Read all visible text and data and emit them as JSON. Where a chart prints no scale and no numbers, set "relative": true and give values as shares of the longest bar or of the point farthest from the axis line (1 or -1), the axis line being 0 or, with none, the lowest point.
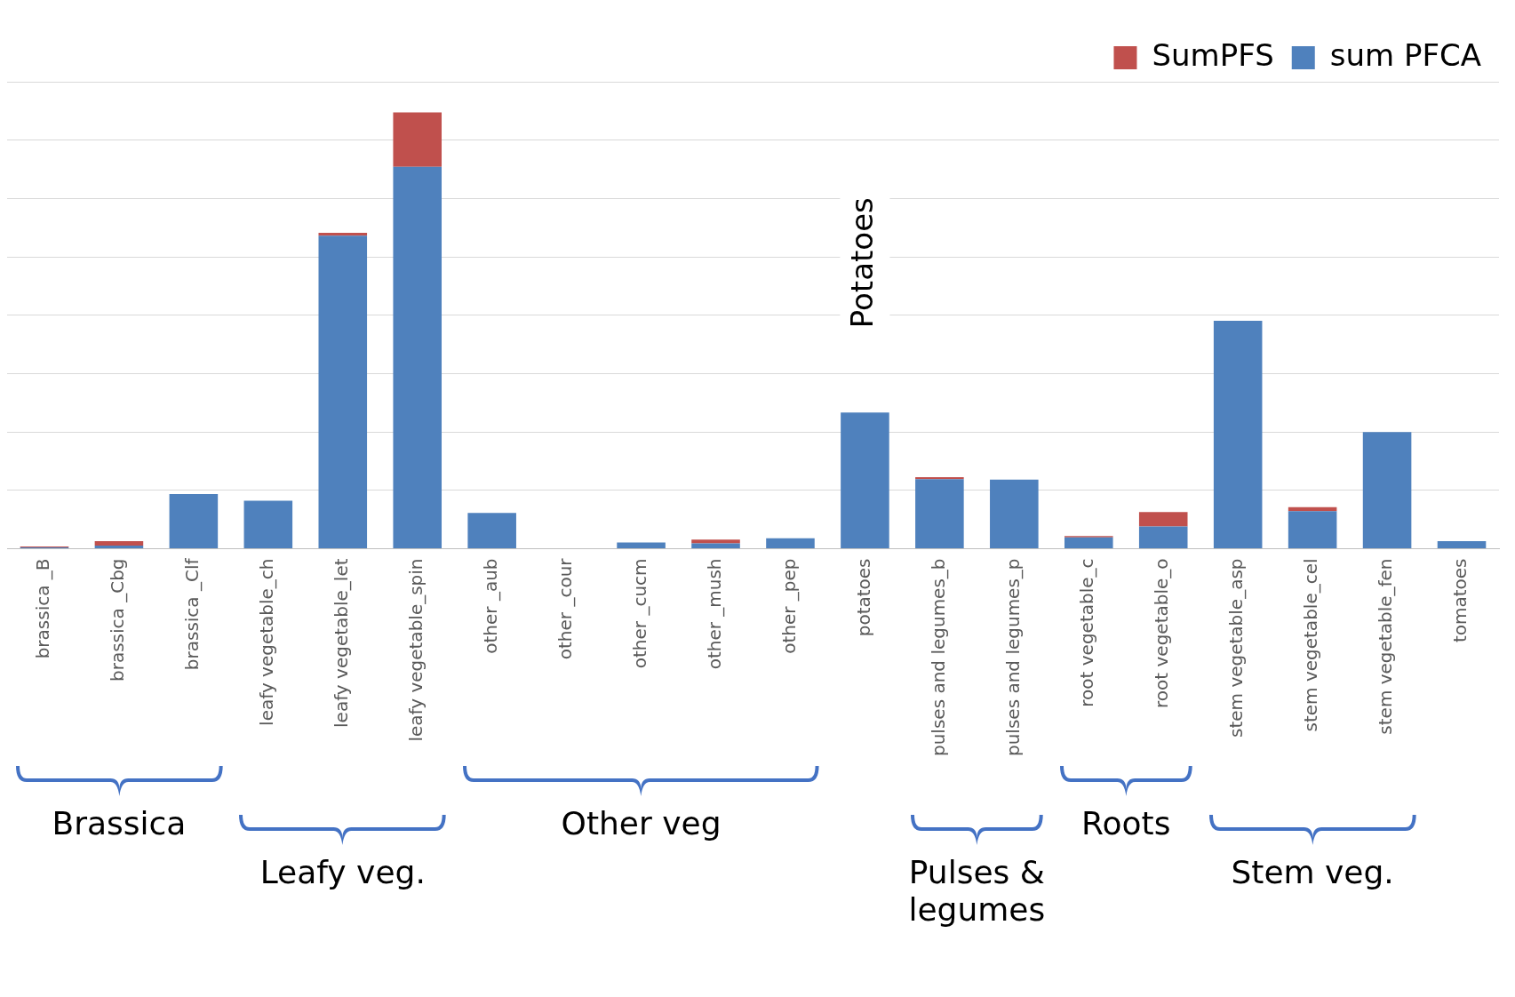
{
  "chart_data": {
    "type": "bar",
    "stacked": true,
    "relative": true,
    "grid": "y",
    "legend": "top right",
    "categories": [
      "brassica _B",
      "brassica _Cbg",
      "brassica _Clf",
      "leafy vegetable_ch",
      "leafy vegetable_let",
      "leafy vegetable_spin",
      "other _aub",
      "other _cour",
      "other _cucm",
      "other _mush",
      "other _pep",
      "potatoes",
      "pulses and legumes_b",
      "pulses and legumes_p",
      "root vegetable_c",
      "root vegetable_o",
      "stem vegetable_asp",
      "stem vegetable_cel",
      "stem vegetable_fen",
      "tomatoes"
    ],
    "series": [
      {
        "name": "sum PFCA",
        "color": "#4f81bd",
        "values": [
          0.003,
          0.007,
          0.125,
          0.11,
          0.717,
          0.875,
          0.082,
          0,
          0.014,
          0.012,
          0.024,
          0.312,
          0.159,
          0.158,
          0.026,
          0.051,
          0.522,
          0.086,
          0.267,
          0.017
        ]
      },
      {
        "name": "SumPFS",
        "color": "#c0504d",
        "values": [
          0.002,
          0.01,
          0,
          0,
          0.007,
          0.125,
          0,
          0,
          0,
          0.009,
          0,
          0,
          0.005,
          0,
          0.003,
          0.033,
          0,
          0.009,
          0,
          0
        ]
      }
    ],
    "annotations": [
      "Potatoes",
      "Brassica",
      "Leafy veg.",
      "Other veg",
      "Pulses & legumes",
      "Roots",
      "Stem veg."
    ]
  }
}
